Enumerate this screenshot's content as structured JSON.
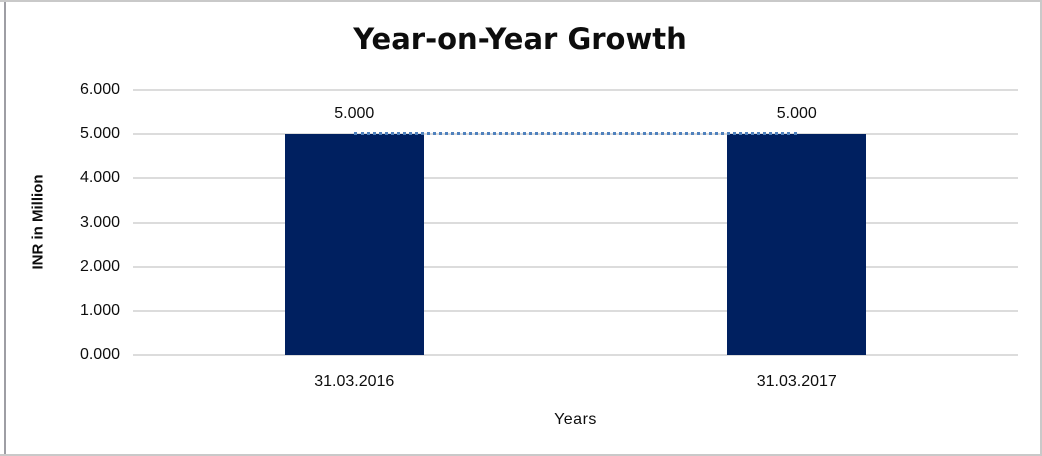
{
  "chart_data": {
    "type": "bar",
    "title": "Year-on-Year Growth",
    "xlabel": "Years",
    "ylabel": "INR in Million",
    "categories": [
      "31.03.2016",
      "31.03.2017"
    ],
    "values": [
      5.0,
      5.0
    ],
    "value_labels": [
      "5.000",
      "5.000"
    ],
    "ylim": [
      0,
      6
    ],
    "ytick_step": 1,
    "yticks_top_to_bottom": [
      "6.000",
      "5.000",
      "4.000",
      "3.000",
      "2.000",
      "1.000",
      "0.000"
    ],
    "grid": "horizontal",
    "legend_position": "none",
    "trendline": {
      "style": "dotted",
      "values": [
        5.0,
        5.0
      ]
    },
    "colors": {
      "bar": "#002060",
      "trendline": "#4f81bd",
      "gridline": "#dcdcdc",
      "text": "#0d0d0d",
      "frame_border": "#c9c9c9",
      "left_edge": "#9e9ea4",
      "background": "#ffffff"
    }
  }
}
